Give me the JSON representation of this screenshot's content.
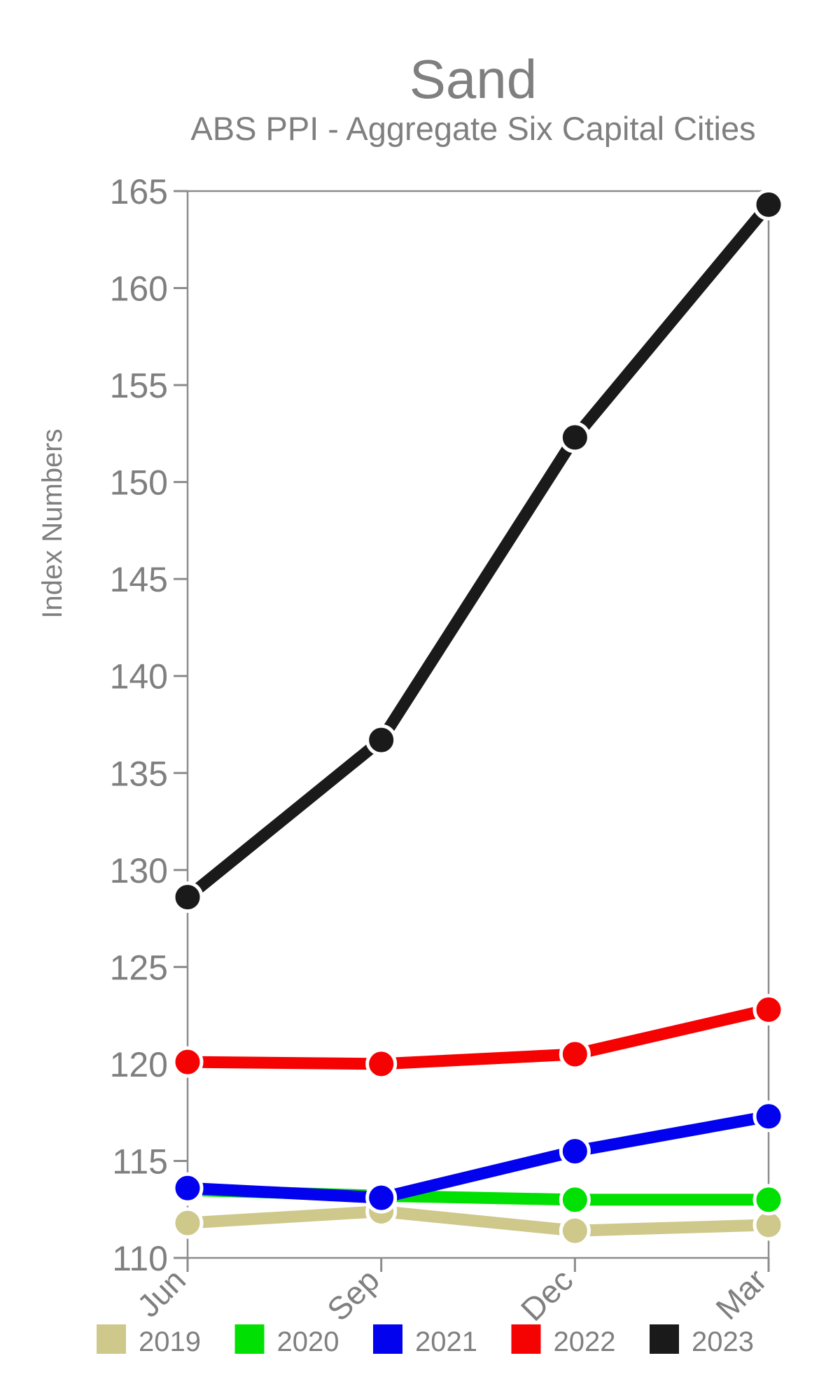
{
  "page": {
    "background_color": "#ffffff",
    "text_color": "#7f7f7f",
    "axis_color": "#8c8c8c"
  },
  "chart_data": {
    "type": "line",
    "title": "Sand",
    "subtitle": "ABS PPI - Aggregate Six Capital Cities",
    "xlabel": "",
    "ylabel": "Index Numbers",
    "categories": [
      "Jun",
      "Sep",
      "Dec",
      "Mar"
    ],
    "series": [
      {
        "name": "2019",
        "color": "#cec88b",
        "values": [
          111.8,
          112.4,
          111.4,
          111.7
        ]
      },
      {
        "name": "2020",
        "color": "#00e002",
        "values": [
          113.5,
          113.2,
          113.0,
          113.0
        ]
      },
      {
        "name": "2021",
        "color": "#0202ee",
        "values": [
          113.6,
          113.1,
          115.5,
          117.3
        ]
      },
      {
        "name": "2022",
        "color": "#f50303",
        "values": [
          120.1,
          120.0,
          120.5,
          122.8
        ]
      },
      {
        "name": "2023",
        "color": "#1a1a1a",
        "values": [
          128.6,
          136.7,
          152.3,
          164.3
        ]
      }
    ],
    "ylim": [
      110,
      165
    ],
    "yticks": [
      110,
      115,
      120,
      125,
      130,
      135,
      140,
      145,
      150,
      155,
      160,
      165
    ],
    "grid": false,
    "legend_position": "bottom",
    "legend_labels": [
      "2019",
      "2020",
      "2021",
      "2022",
      "2023"
    ]
  }
}
